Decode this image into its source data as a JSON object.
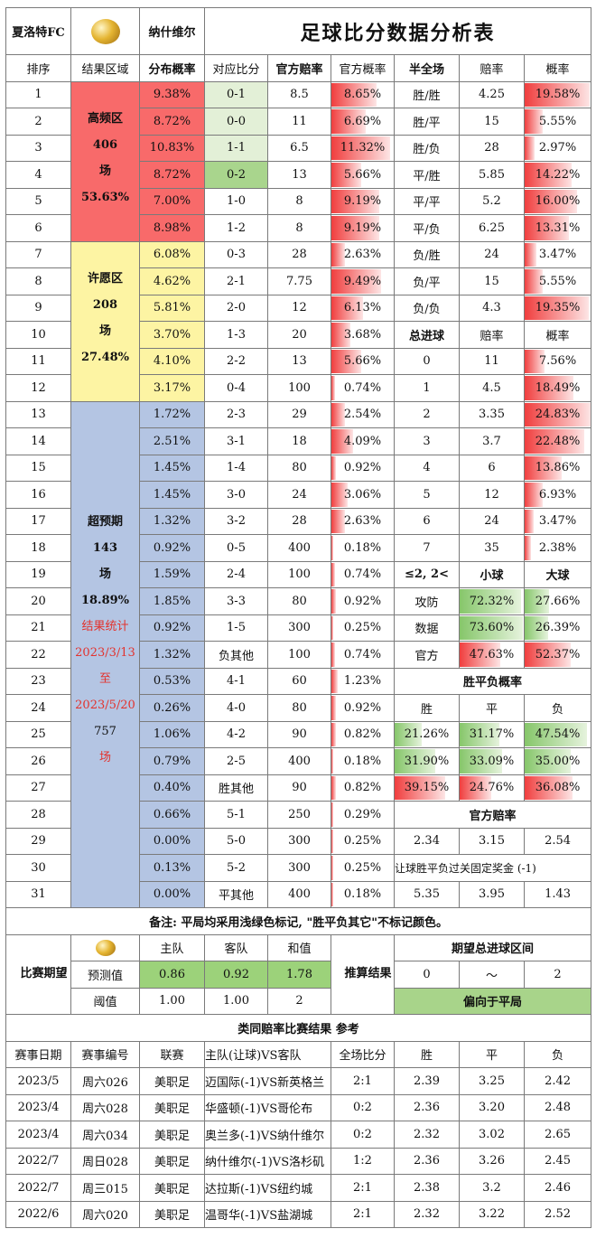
{
  "header": {
    "home": "夏洛特FC",
    "away": "纳什维尔",
    "title": "足球比分数据分析表",
    "ball_icon": "football-icon"
  },
  "cols": {
    "idx": "排序",
    "zone": "结果区域",
    "dist": "分布概率",
    "score": "对应比分",
    "odds": "官方赔率",
    "oprob": "官方概率",
    "ht": "半全场",
    "htodds": "赔率",
    "htprob": "概率"
  },
  "zones": [
    {
      "l1": "高频区",
      "l2": "406",
      "l3": "场",
      "l4": "53.63%"
    },
    {
      "l1": "许愿区",
      "l2": "208",
      "l3": "场",
      "l4": "27.48%"
    },
    {
      "l1": "超预期",
      "l2": "143",
      "l3": "场",
      "l4": "18.89%",
      "stat1": "结果统计",
      "stat2": "2023/3/13",
      "stat3": "至",
      "stat4": "2023/5/20",
      "count": "757",
      "unit": "场"
    }
  ],
  "rows": [
    {
      "i": "1",
      "d": "9.38%",
      "s": "0-1",
      "o": "8.5",
      "p": "8.65%",
      "pv": 8.65
    },
    {
      "i": "2",
      "d": "8.72%",
      "s": "0-0",
      "o": "11",
      "p": "6.69%",
      "pv": 6.69
    },
    {
      "i": "3",
      "d": "10.83%",
      "s": "1-1",
      "o": "6.5",
      "p": "11.32%",
      "pv": 11.32
    },
    {
      "i": "4",
      "d": "8.72%",
      "s": "0-2",
      "o": "13",
      "p": "5.66%",
      "pv": 5.66
    },
    {
      "i": "5",
      "d": "7.00%",
      "s": "1-0",
      "o": "8",
      "p": "9.19%",
      "pv": 9.19
    },
    {
      "i": "6",
      "d": "8.98%",
      "s": "1-2",
      "o": "8",
      "p": "9.19%",
      "pv": 9.19
    },
    {
      "i": "7",
      "d": "6.08%",
      "s": "0-3",
      "o": "28",
      "p": "2.63%",
      "pv": 2.63
    },
    {
      "i": "8",
      "d": "4.62%",
      "s": "2-1",
      "o": "7.75",
      "p": "9.49%",
      "pv": 9.49
    },
    {
      "i": "9",
      "d": "5.81%",
      "s": "2-0",
      "o": "12",
      "p": "6.13%",
      "pv": 6.13
    },
    {
      "i": "10",
      "d": "3.70%",
      "s": "1-3",
      "o": "20",
      "p": "3.68%",
      "pv": 3.68
    },
    {
      "i": "11",
      "d": "4.10%",
      "s": "2-2",
      "o": "13",
      "p": "5.66%",
      "pv": 5.66
    },
    {
      "i": "12",
      "d": "3.17%",
      "s": "0-4",
      "o": "100",
      "p": "0.74%",
      "pv": 0.74
    },
    {
      "i": "13",
      "d": "1.72%",
      "s": "2-3",
      "o": "29",
      "p": "2.54%",
      "pv": 2.54
    },
    {
      "i": "14",
      "d": "2.51%",
      "s": "3-1",
      "o": "18",
      "p": "4.09%",
      "pv": 4.09
    },
    {
      "i": "15",
      "d": "1.45%",
      "s": "1-4",
      "o": "80",
      "p": "0.92%",
      "pv": 0.92
    },
    {
      "i": "16",
      "d": "1.45%",
      "s": "3-0",
      "o": "24",
      "p": "3.06%",
      "pv": 3.06
    },
    {
      "i": "17",
      "d": "1.32%",
      "s": "3-2",
      "o": "28",
      "p": "2.63%",
      "pv": 2.63
    },
    {
      "i": "18",
      "d": "0.92%",
      "s": "0-5",
      "o": "400",
      "p": "0.18%",
      "pv": 0.18
    },
    {
      "i": "19",
      "d": "1.59%",
      "s": "2-4",
      "o": "100",
      "p": "0.74%",
      "pv": 0.74
    },
    {
      "i": "20",
      "d": "1.85%",
      "s": "3-3",
      "o": "80",
      "p": "0.92%",
      "pv": 0.92
    },
    {
      "i": "21",
      "d": "0.92%",
      "s": "1-5",
      "o": "300",
      "p": "0.25%",
      "pv": 0.25
    },
    {
      "i": "22",
      "d": "1.32%",
      "s": "负其他",
      "o": "100",
      "p": "0.74%",
      "pv": 0.74
    },
    {
      "i": "23",
      "d": "0.53%",
      "s": "4-1",
      "o": "60",
      "p": "1.23%",
      "pv": 1.23
    },
    {
      "i": "24",
      "d": "0.26%",
      "s": "4-0",
      "o": "80",
      "p": "0.92%",
      "pv": 0.92
    },
    {
      "i": "25",
      "d": "1.06%",
      "s": "4-2",
      "o": "90",
      "p": "0.82%",
      "pv": 0.82
    },
    {
      "i": "26",
      "d": "0.79%",
      "s": "2-5",
      "o": "400",
      "p": "0.18%",
      "pv": 0.18
    },
    {
      "i": "27",
      "d": "0.40%",
      "s": "胜其他",
      "o": "90",
      "p": "0.82%",
      "pv": 0.82
    },
    {
      "i": "28",
      "d": "0.66%",
      "s": "5-1",
      "o": "250",
      "p": "0.29%",
      "pv": 0.29
    },
    {
      "i": "29",
      "d": "0.00%",
      "s": "5-0",
      "o": "300",
      "p": "0.25%",
      "pv": 0.25
    },
    {
      "i": "30",
      "d": "0.13%",
      "s": "5-2",
      "o": "300",
      "p": "0.25%",
      "pv": 0.25
    },
    {
      "i": "31",
      "d": "0.00%",
      "s": "平其他",
      "o": "400",
      "p": "0.18%",
      "pv": 0.18
    }
  ],
  "halffull": [
    {
      "r": "胜/胜",
      "o": "4.25",
      "p": "19.58%",
      "pv": 19.58
    },
    {
      "r": "胜/平",
      "o": "15",
      "p": "5.55%",
      "pv": 5.55
    },
    {
      "r": "胜/负",
      "o": "28",
      "p": "2.97%",
      "pv": 2.97
    },
    {
      "r": "平/胜",
      "o": "5.85",
      "p": "14.22%",
      "pv": 14.22
    },
    {
      "r": "平/平",
      "o": "5.2",
      "p": "16.00%",
      "pv": 16.0
    },
    {
      "r": "平/负",
      "o": "6.25",
      "p": "13.31%",
      "pv": 13.31
    },
    {
      "r": "负/胜",
      "o": "24",
      "p": "3.47%",
      "pv": 3.47
    },
    {
      "r": "负/平",
      "o": "15",
      "p": "5.55%",
      "pv": 5.55
    },
    {
      "r": "负/负",
      "o": "4.3",
      "p": "19.35%",
      "pv": 19.35
    }
  ],
  "goals_header": {
    "t": "总进球",
    "o": "赔率",
    "p": "概率"
  },
  "goals": [
    {
      "g": "0",
      "o": "11",
      "p": "7.56%",
      "pv": 7.56
    },
    {
      "g": "1",
      "o": "4.5",
      "p": "18.49%",
      "pv": 18.49
    },
    {
      "g": "2",
      "o": "3.35",
      "p": "24.83%",
      "pv": 24.83
    },
    {
      "g": "3",
      "o": "3.7",
      "p": "22.48%",
      "pv": 22.48
    },
    {
      "g": "4",
      "o": "6",
      "p": "13.86%",
      "pv": 13.86
    },
    {
      "g": "5",
      "o": "12",
      "p": "6.93%",
      "pv": 6.93
    },
    {
      "g": "6",
      "o": "24",
      "p": "3.47%",
      "pv": 3.47
    },
    {
      "g": "7",
      "o": "35",
      "p": "2.38%",
      "pv": 2.38
    }
  ],
  "ou": {
    "h": "≤2, 2<",
    "small": "小球",
    "big": "大球",
    "rows": [
      {
        "k": "攻防",
        "s": "72.32%",
        "sv": 72.32,
        "b": "27.66%",
        "bv": 27.66
      },
      {
        "k": "数据",
        "s": "73.60%",
        "sv": 73.6,
        "b": "26.39%",
        "bv": 26.39
      },
      {
        "k": "官方",
        "s": "47.63%",
        "sv": 47.63,
        "b": "52.37%",
        "bv": 52.37
      }
    ]
  },
  "wdl": {
    "title": "胜平负概率",
    "h": [
      "胜",
      "平",
      "负"
    ],
    "rows": [
      {
        "w": "21.26%",
        "wv": 21.26,
        "d": "31.17%",
        "dv": 31.17,
        "l": "47.54%",
        "lv": 47.54,
        "c": "g"
      },
      {
        "w": "31.90%",
        "wv": 31.9,
        "d": "33.09%",
        "dv": 33.09,
        "l": "35.00%",
        "lv": 35.0,
        "c": "g"
      },
      {
        "w": "39.15%",
        "wv": 39.15,
        "d": "24.76%",
        "dv": 24.76,
        "l": "36.08%",
        "lv": 36.08,
        "c": "r"
      }
    ]
  },
  "official": {
    "title": "官方赔率",
    "r1": [
      "2.34",
      "3.15",
      "2.54"
    ],
    "r2": "让球胜平负过关固定奖金 (-1)",
    "r3": [
      "5.35",
      "3.95",
      "1.43"
    ]
  },
  "note": "备注: 平局均采用浅绿色标记, \"胜平负其它\"不标记颜色。",
  "expect": {
    "label": "比赛期望",
    "home": "主队",
    "away": "客队",
    "sum": "和值",
    "pred": "预测值",
    "pv": [
      "0.86",
      "0.92",
      "1.78"
    ],
    "thr": "阈值",
    "tv": [
      "1.00",
      "1.00",
      "2"
    ],
    "calc": "推算结果",
    "range_title": "期望总进球区间",
    "lo": "0",
    "tilde": "～",
    "hi": "2",
    "verdict": "偏向于平局"
  },
  "similar": {
    "title": "类同赔率比赛结果 参考",
    "h": [
      "赛事日期",
      "赛事编号",
      "联赛",
      "主队(让球)VS客队",
      "全场比分",
      "胜",
      "平",
      "负"
    ],
    "rows": [
      [
        "2023/5",
        "周六026",
        "美职足",
        "迈国际(-1)VS新英格兰",
        "2:1",
        "2.39",
        "3.25",
        "2.42"
      ],
      [
        "2023/4",
        "周六028",
        "美职足",
        "华盛顿(-1)VS哥伦布",
        "0:2",
        "2.36",
        "3.20",
        "2.48"
      ],
      [
        "2023/4",
        "周六034",
        "美职足",
        "奥兰多(-1)VS纳什维尔",
        "0:2",
        "2.32",
        "3.02",
        "2.65"
      ],
      [
        "2022/7",
        "周日028",
        "美职足",
        "纳什维尔(-1)VS洛杉矶",
        "1:2",
        "2.36",
        "3.26",
        "2.45"
      ],
      [
        "2022/7",
        "周三015",
        "美职足",
        "达拉斯(-1)VS纽约城",
        "2:1",
        "2.38",
        "3.2",
        "2.46"
      ],
      [
        "2022/6",
        "周六020",
        "美职足",
        "温哥华(-1)VS盐湖城",
        "2:1",
        "2.32",
        "3.22",
        "2.52"
      ]
    ]
  }
}
